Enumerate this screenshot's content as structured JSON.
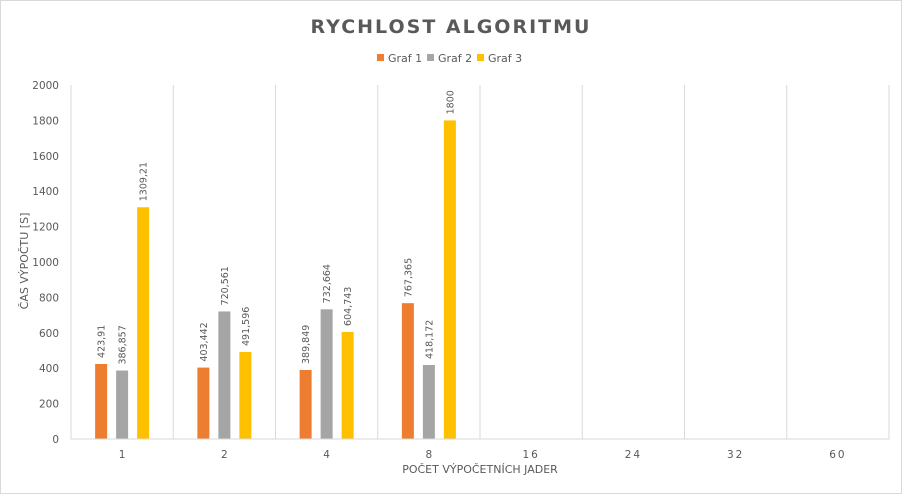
{
  "chart_data": {
    "type": "bar",
    "title": "RYCHLOST ALGORITMU",
    "xlabel": "POČET VÝPOČETNÍCH JADER",
    "ylabel": "ČAS VÝPOČTU [S]",
    "ylim": [
      0,
      2000
    ],
    "yticks": [
      0,
      200,
      400,
      600,
      800,
      1000,
      1200,
      1400,
      1600,
      1800,
      2000
    ],
    "categories": [
      "1",
      "2",
      "4",
      "8",
      "16",
      "24",
      "32",
      "60"
    ],
    "series": [
      {
        "name": "Graf 1",
        "color": "#ed7d31",
        "values": [
          423.91,
          403.442,
          389.849,
          767.365,
          null,
          null,
          null,
          null
        ],
        "labels": [
          "423,91",
          "403,442",
          "389,849",
          "767,365",
          "",
          "",
          "",
          ""
        ]
      },
      {
        "name": "Graf 2",
        "color": "#a5a5a5",
        "values": [
          386.857,
          720.561,
          732.664,
          418.172,
          null,
          null,
          null,
          null
        ],
        "labels": [
          "386,857",
          "720,561",
          "732,664",
          "418,172",
          "",
          "",
          "",
          ""
        ]
      },
      {
        "name": "Graf 3",
        "color": "#ffc000",
        "values": [
          1309.21,
          491.596,
          604.743,
          1800,
          null,
          null,
          null,
          null
        ],
        "labels": [
          "1309,21",
          "491,596",
          "604,743",
          "1800",
          "",
          "",
          "",
          ""
        ]
      }
    ],
    "legend": "top",
    "grid": {
      "vertical": true,
      "horizontal": false
    },
    "colors": {
      "axis": "#d9d9d9",
      "grid": "#d9d9d9",
      "text": "#595959"
    }
  }
}
